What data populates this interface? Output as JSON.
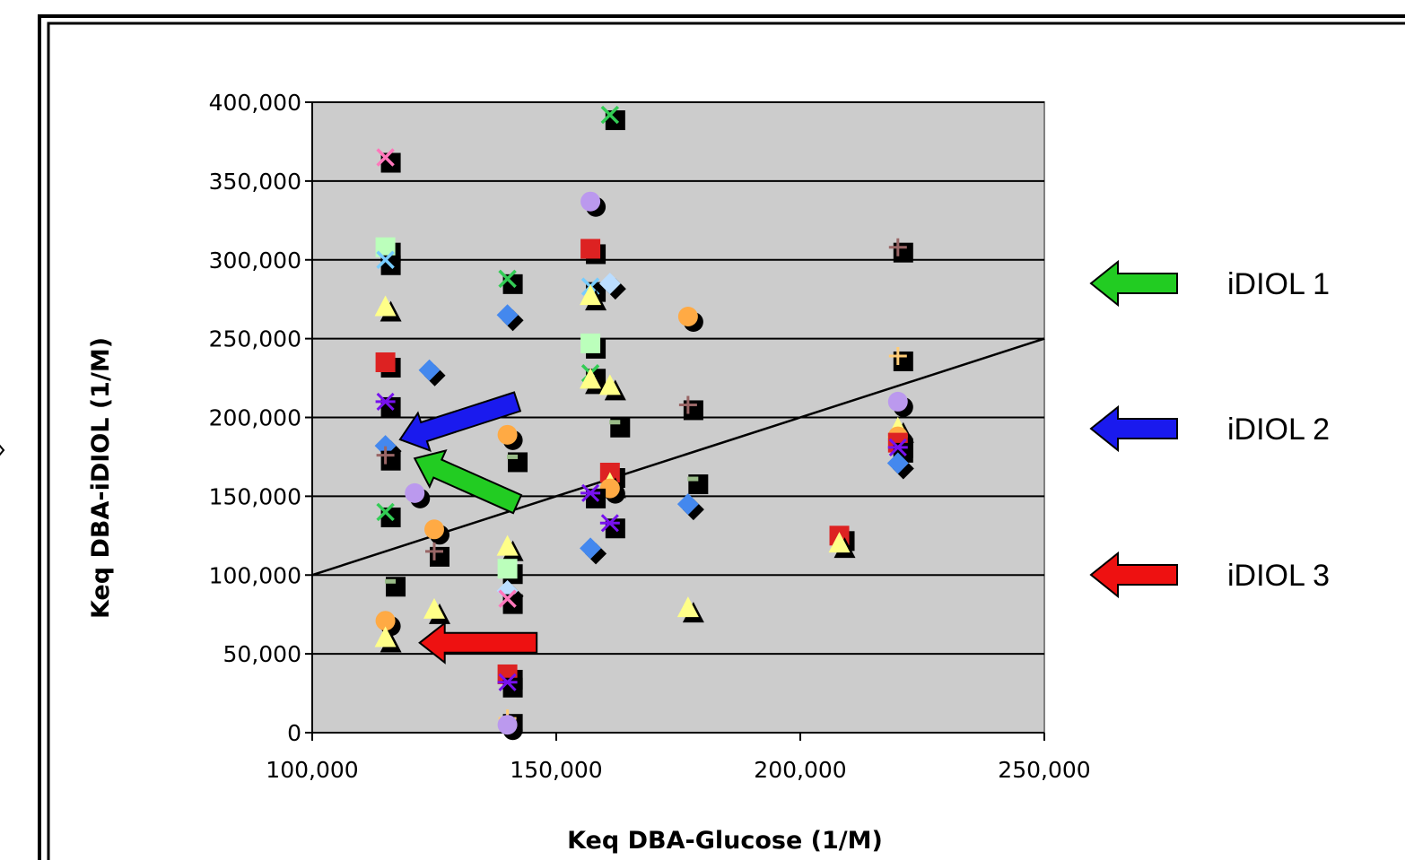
{
  "chart_data": {
    "type": "scatter",
    "xlabel": "Keq DBA-Glucose (1/M)",
    "ylabel": "Keq DBA-iDIOL (1/M)",
    "xlim": [
      100000,
      250000
    ],
    "ylim": [
      0,
      400000
    ],
    "x_ticks": [
      "100,000",
      "150,000",
      "200,000",
      "250,000"
    ],
    "y_ticks": [
      "0",
      "50,000",
      "100,000",
      "150,000",
      "200,000",
      "250,000",
      "300,000",
      "350,000",
      "400,000"
    ],
    "grid": "horizontal",
    "plot_background": "#cccccc",
    "reference_line": {
      "x": [
        100000,
        250000
      ],
      "y": [
        100000,
        250000
      ]
    },
    "points": [
      {
        "x": 115000,
        "y": 365000,
        "marker": "cross",
        "color": "#ff77bb"
      },
      {
        "x": 115000,
        "y": 308000,
        "marker": "square",
        "color": "#bbffbb"
      },
      {
        "x": 115000,
        "y": 300000,
        "marker": "cross",
        "color": "#77ccff"
      },
      {
        "x": 115000,
        "y": 270000,
        "marker": "triangle",
        "color": "#ffff88"
      },
      {
        "x": 115000,
        "y": 235000,
        "marker": "square",
        "color": "#dd2222"
      },
      {
        "x": 115000,
        "y": 210000,
        "marker": "star",
        "color": "#7711ee"
      },
      {
        "x": 115000,
        "y": 182000,
        "marker": "diamond",
        "color": "#4488ee"
      },
      {
        "x": 115000,
        "y": 176000,
        "marker": "plus",
        "color": "#996666"
      },
      {
        "x": 115000,
        "y": 140000,
        "marker": "cross",
        "color": "#33cc55"
      },
      {
        "x": 116000,
        "y": 96000,
        "marker": "dash",
        "color": "#99bb88"
      },
      {
        "x": 115000,
        "y": 71000,
        "marker": "circle",
        "color": "#ffaa44"
      },
      {
        "x": 115000,
        "y": 60000,
        "marker": "triangle",
        "color": "#ffff88"
      },
      {
        "x": 121000,
        "y": 152000,
        "marker": "circle",
        "color": "#bb99ee"
      },
      {
        "x": 124000,
        "y": 230000,
        "marker": "diamond",
        "color": "#4488ee"
      },
      {
        "x": 125000,
        "y": 129000,
        "marker": "circle",
        "color": "#ffaa44"
      },
      {
        "x": 125000,
        "y": 115000,
        "marker": "plus",
        "color": "#996666"
      },
      {
        "x": 125000,
        "y": 78000,
        "marker": "triangle",
        "color": "#ffff88"
      },
      {
        "x": 140000,
        "y": 288000,
        "marker": "cross",
        "color": "#33cc55"
      },
      {
        "x": 140000,
        "y": 265000,
        "marker": "diamond",
        "color": "#4488ee"
      },
      {
        "x": 140000,
        "y": 189000,
        "marker": "circle",
        "color": "#ffaa44"
      },
      {
        "x": 141000,
        "y": 175000,
        "marker": "dash",
        "color": "#99bb88"
      },
      {
        "x": 140000,
        "y": 118000,
        "marker": "triangle",
        "color": "#ffff88"
      },
      {
        "x": 140000,
        "y": 104000,
        "marker": "square",
        "color": "#bbffbb"
      },
      {
        "x": 140000,
        "y": 90000,
        "marker": "diamond",
        "color": "#bbddff"
      },
      {
        "x": 140000,
        "y": 85000,
        "marker": "cross",
        "color": "#ff77bb"
      },
      {
        "x": 140000,
        "y": 37000,
        "marker": "square",
        "color": "#dd2222"
      },
      {
        "x": 140000,
        "y": 32000,
        "marker": "star",
        "color": "#7711ee"
      },
      {
        "x": 140000,
        "y": 9000,
        "marker": "plus",
        "color": "#ffcc77"
      },
      {
        "x": 140000,
        "y": 5000,
        "marker": "circle",
        "color": "#bb99ee"
      },
      {
        "x": 161000,
        "y": 392000,
        "marker": "cross",
        "color": "#33cc55"
      },
      {
        "x": 157000,
        "y": 337000,
        "marker": "circle",
        "color": "#bb99ee"
      },
      {
        "x": 157000,
        "y": 307000,
        "marker": "square",
        "color": "#dd2222"
      },
      {
        "x": 157000,
        "y": 283000,
        "marker": "cross",
        "color": "#77ccff"
      },
      {
        "x": 161000,
        "y": 285000,
        "marker": "diamond",
        "color": "#bbddff"
      },
      {
        "x": 157000,
        "y": 277000,
        "marker": "triangle",
        "color": "#ffff88"
      },
      {
        "x": 157000,
        "y": 247000,
        "marker": "square",
        "color": "#bbffbb"
      },
      {
        "x": 157000,
        "y": 228000,
        "marker": "cross",
        "color": "#33cc55"
      },
      {
        "x": 157000,
        "y": 224000,
        "marker": "triangle",
        "color": "#ffff88"
      },
      {
        "x": 161000,
        "y": 220000,
        "marker": "triangle",
        "color": "#ffff88"
      },
      {
        "x": 162000,
        "y": 197000,
        "marker": "dash",
        "color": "#99bb88"
      },
      {
        "x": 161000,
        "y": 165000,
        "marker": "square",
        "color": "#dd2222"
      },
      {
        "x": 161000,
        "y": 158000,
        "marker": "triangle",
        "color": "#ffff88"
      },
      {
        "x": 161000,
        "y": 155000,
        "marker": "circle",
        "color": "#ffaa44"
      },
      {
        "x": 157000,
        "y": 152000,
        "marker": "star",
        "color": "#7711ee"
      },
      {
        "x": 161000,
        "y": 133000,
        "marker": "star",
        "color": "#7711ee"
      },
      {
        "x": 157000,
        "y": 117000,
        "marker": "diamond",
        "color": "#4488ee"
      },
      {
        "x": 177000,
        "y": 264000,
        "marker": "circle",
        "color": "#ffaa44"
      },
      {
        "x": 177000,
        "y": 208000,
        "marker": "plus",
        "color": "#996666"
      },
      {
        "x": 178000,
        "y": 161000,
        "marker": "dash",
        "color": "#99bb88"
      },
      {
        "x": 177000,
        "y": 145000,
        "marker": "diamond",
        "color": "#4488ee"
      },
      {
        "x": 177000,
        "y": 79000,
        "marker": "triangle",
        "color": "#ffff88"
      },
      {
        "x": 208000,
        "y": 125000,
        "marker": "square",
        "color": "#dd2222"
      },
      {
        "x": 208000,
        "y": 120000,
        "marker": "triangle",
        "color": "#ffff88"
      },
      {
        "x": 220000,
        "y": 308000,
        "marker": "plus",
        "color": "#996666"
      },
      {
        "x": 220000,
        "y": 239000,
        "marker": "plus",
        "color": "#ffcc77"
      },
      {
        "x": 220000,
        "y": 210000,
        "marker": "circle",
        "color": "#bb99ee"
      },
      {
        "x": 220000,
        "y": 193000,
        "marker": "triangle",
        "color": "#ffff88"
      },
      {
        "x": 220000,
        "y": 188000,
        "marker": "circle",
        "color": "#ffaa44"
      },
      {
        "x": 220000,
        "y": 184000,
        "marker": "square",
        "color": "#dd2222"
      },
      {
        "x": 220000,
        "y": 181000,
        "marker": "star",
        "color": "#7711ee"
      },
      {
        "x": 220000,
        "y": 171000,
        "marker": "diamond",
        "color": "#4488ee"
      }
    ],
    "plot_arrows": [
      {
        "color": "#1a1aee",
        "tail": [
          142000,
          210000
        ],
        "head": [
          118000,
          186000
        ]
      },
      {
        "color": "#22cc22",
        "tail": [
          142000,
          145000
        ],
        "head": [
          121000,
          174000
        ]
      },
      {
        "color": "#ee1111",
        "tail": [
          146000,
          57000
        ],
        "head": [
          122000,
          57000
        ]
      }
    ]
  },
  "legend": {
    "items": [
      {
        "label": "iDIOL 1",
        "color": "#22cc22"
      },
      {
        "label": "iDIOL 2",
        "color": "#1a1aee"
      },
      {
        "label": "iDIOL 3",
        "color": "#ee1111"
      }
    ]
  }
}
